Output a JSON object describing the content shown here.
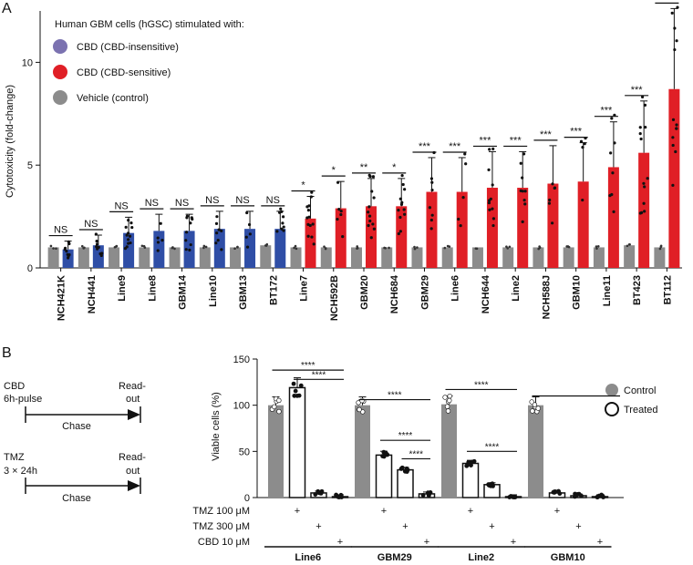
{
  "colors": {
    "vehicle": "#8c8c8c",
    "insensitive": "#2f4ea6",
    "sensitive": "#e01f26",
    "legend_insensitive": "#7b72b0",
    "treated": "#ffffff",
    "line": "#111111"
  },
  "chart_data": [
    {
      "panel_label": "A",
      "type": "bar",
      "ylabel": "Cytotoxicity (fold-change)",
      "ylim": [
        0,
        12.5
      ],
      "yticks": [
        0,
        5,
        10
      ],
      "legend": {
        "title": "Human GBM cells (hGSC) stimulated with:",
        "placement": "top-left",
        "entries": [
          {
            "label": "CBD (CBD-insensitive)",
            "color": "#7b72b0"
          },
          {
            "label": "CBD (CBD-sensitive)",
            "color": "#e01f26"
          },
          {
            "label": "Vehicle (control)",
            "color": "#8c8c8c"
          }
        ]
      },
      "categories": [
        "NCH421K",
        "NCH441",
        "Line9",
        "Line8",
        "GBM14",
        "Line10",
        "GBM13",
        "BT172",
        "Line7",
        "NCH592B",
        "GBM20",
        "NCH684",
        "GBM29",
        "Line6",
        "NCH644",
        "Line2",
        "NCH588J",
        "GBM10",
        "Line11",
        "BT423",
        "BT112"
      ],
      "series": [
        {
          "name": "Vehicle (control)",
          "values": [
            1,
            1,
            1,
            1,
            1,
            1,
            1,
            1.1,
            1,
            1,
            1,
            1,
            1,
            1,
            1,
            1,
            1,
            1,
            1,
            1.1,
            1
          ]
        },
        {
          "name": "CBD",
          "values": [
            0.9,
            1.1,
            1.7,
            1.8,
            1.8,
            1.9,
            1.9,
            1.9,
            2.4,
            2.9,
            3.0,
            3.0,
            3.7,
            3.7,
            3.9,
            3.9,
            4.1,
            4.2,
            4.9,
            5.6,
            8.7
          ]
        }
      ],
      "sensitivity": [
        "insensitive",
        "insensitive",
        "insensitive",
        "insensitive",
        "insensitive",
        "insensitive",
        "insensitive",
        "insensitive",
        "sensitive",
        "sensitive",
        "sensitive",
        "sensitive",
        "sensitive",
        "sensitive",
        "sensitive",
        "sensitive",
        "sensitive",
        "sensitive",
        "sensitive",
        "sensitive",
        "sensitive"
      ],
      "significance": [
        "NS",
        "NS",
        "NS",
        "NS",
        "NS",
        "NS",
        "NS",
        "NS",
        "*",
        "*",
        "**",
        "*",
        "***",
        "***",
        "***",
        "***",
        "***",
        "***",
        "***",
        "***",
        "***"
      ]
    },
    {
      "panel_label": "B",
      "type": "bar",
      "ylabel": "Viable cells (%)",
      "ylim": [
        0,
        150
      ],
      "yticks": [
        0,
        50,
        100,
        150
      ],
      "legend": {
        "placement": "top-right",
        "entries": [
          {
            "label": "Control",
            "style": "filled"
          },
          {
            "label": "Treated",
            "style": "open"
          }
        ]
      },
      "groups": [
        "Line6",
        "GBM29",
        "Line2",
        "GBM10"
      ],
      "conditions": [
        "Control",
        "TMZ 100 μM",
        "TMZ 300 μM",
        "CBD 10 μM"
      ],
      "values": [
        [
          100,
          119,
          5,
          1
        ],
        [
          100,
          46,
          30,
          4
        ],
        [
          101,
          37,
          14,
          1
        ],
        [
          100,
          5,
          2,
          1
        ]
      ],
      "treatment_rows": [
        {
          "label": "TMZ 100 μM",
          "mark": "+",
          "condition_index": 1
        },
        {
          "label": "TMZ 300 μM",
          "mark": "+",
          "condition_index": 2
        },
        {
          "label": "CBD 10 μM",
          "mark": "+",
          "condition_index": 3
        }
      ],
      "significance": [
        "****",
        "****",
        "****",
        "****",
        "****",
        "****",
        "****"
      ]
    }
  ],
  "schematic": {
    "rows": [
      {
        "start": "CBD",
        "start_sub": "6h-pulse",
        "end": "Read-",
        "end_sub": "out",
        "arrow_label": "Chase"
      },
      {
        "start": "TMZ",
        "start_sub": "3 × 24h",
        "end": "Read-",
        "end_sub": "out",
        "arrow_label": "Chase"
      }
    ]
  }
}
